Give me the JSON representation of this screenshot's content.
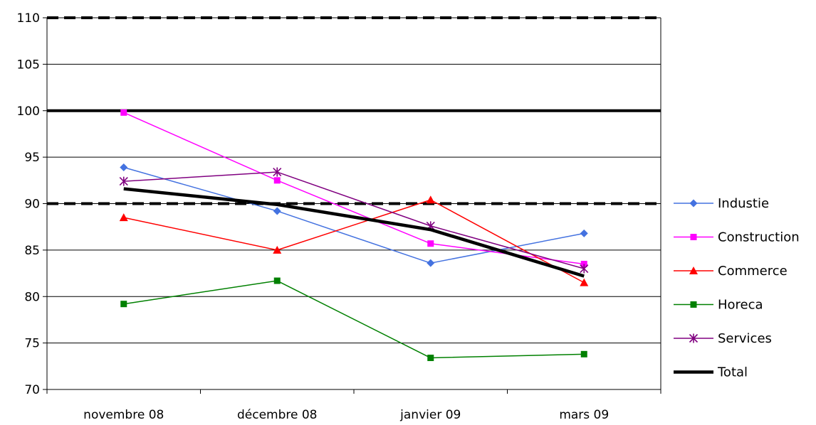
{
  "chart_data": {
    "type": "line",
    "title": "",
    "xlabel": "",
    "ylabel": "",
    "categories": [
      "novembre 08",
      "décembre 08",
      "janvier 09",
      "mars 09"
    ],
    "ylim": [
      70,
      110
    ],
    "yticks": [
      70,
      75,
      80,
      85,
      90,
      95,
      100,
      105,
      110
    ],
    "grid": true,
    "legend_position": "right",
    "reference_lines": [
      {
        "value": 110,
        "style": "dashed",
        "color": "#000000"
      },
      {
        "value": 100,
        "style": "solid",
        "color": "#000000"
      },
      {
        "value": 90,
        "style": "dashed",
        "color": "#000000"
      }
    ],
    "series": [
      {
        "name": "Industie",
        "values": [
          93.9,
          89.2,
          83.6,
          86.8
        ],
        "color": "#4472E0",
        "marker": "diamond"
      },
      {
        "name": "Construction",
        "values": [
          99.8,
          92.5,
          85.7,
          83.5
        ],
        "color": "#FF00FF",
        "marker": "square"
      },
      {
        "name": "Commerce",
        "values": [
          88.5,
          85.0,
          90.4,
          81.5
        ],
        "color": "#FF0000",
        "marker": "triangle"
      },
      {
        "name": "Horeca",
        "values": [
          79.2,
          81.7,
          73.4,
          73.8
        ],
        "color": "#008000",
        "marker": "square"
      },
      {
        "name": "Services",
        "values": [
          92.4,
          93.4,
          87.6,
          83.0
        ],
        "color": "#800080",
        "marker": "asterisk"
      },
      {
        "name": "Total",
        "values": [
          91.6,
          89.9,
          87.2,
          82.2
        ],
        "color": "#000000",
        "marker": "none"
      }
    ]
  }
}
